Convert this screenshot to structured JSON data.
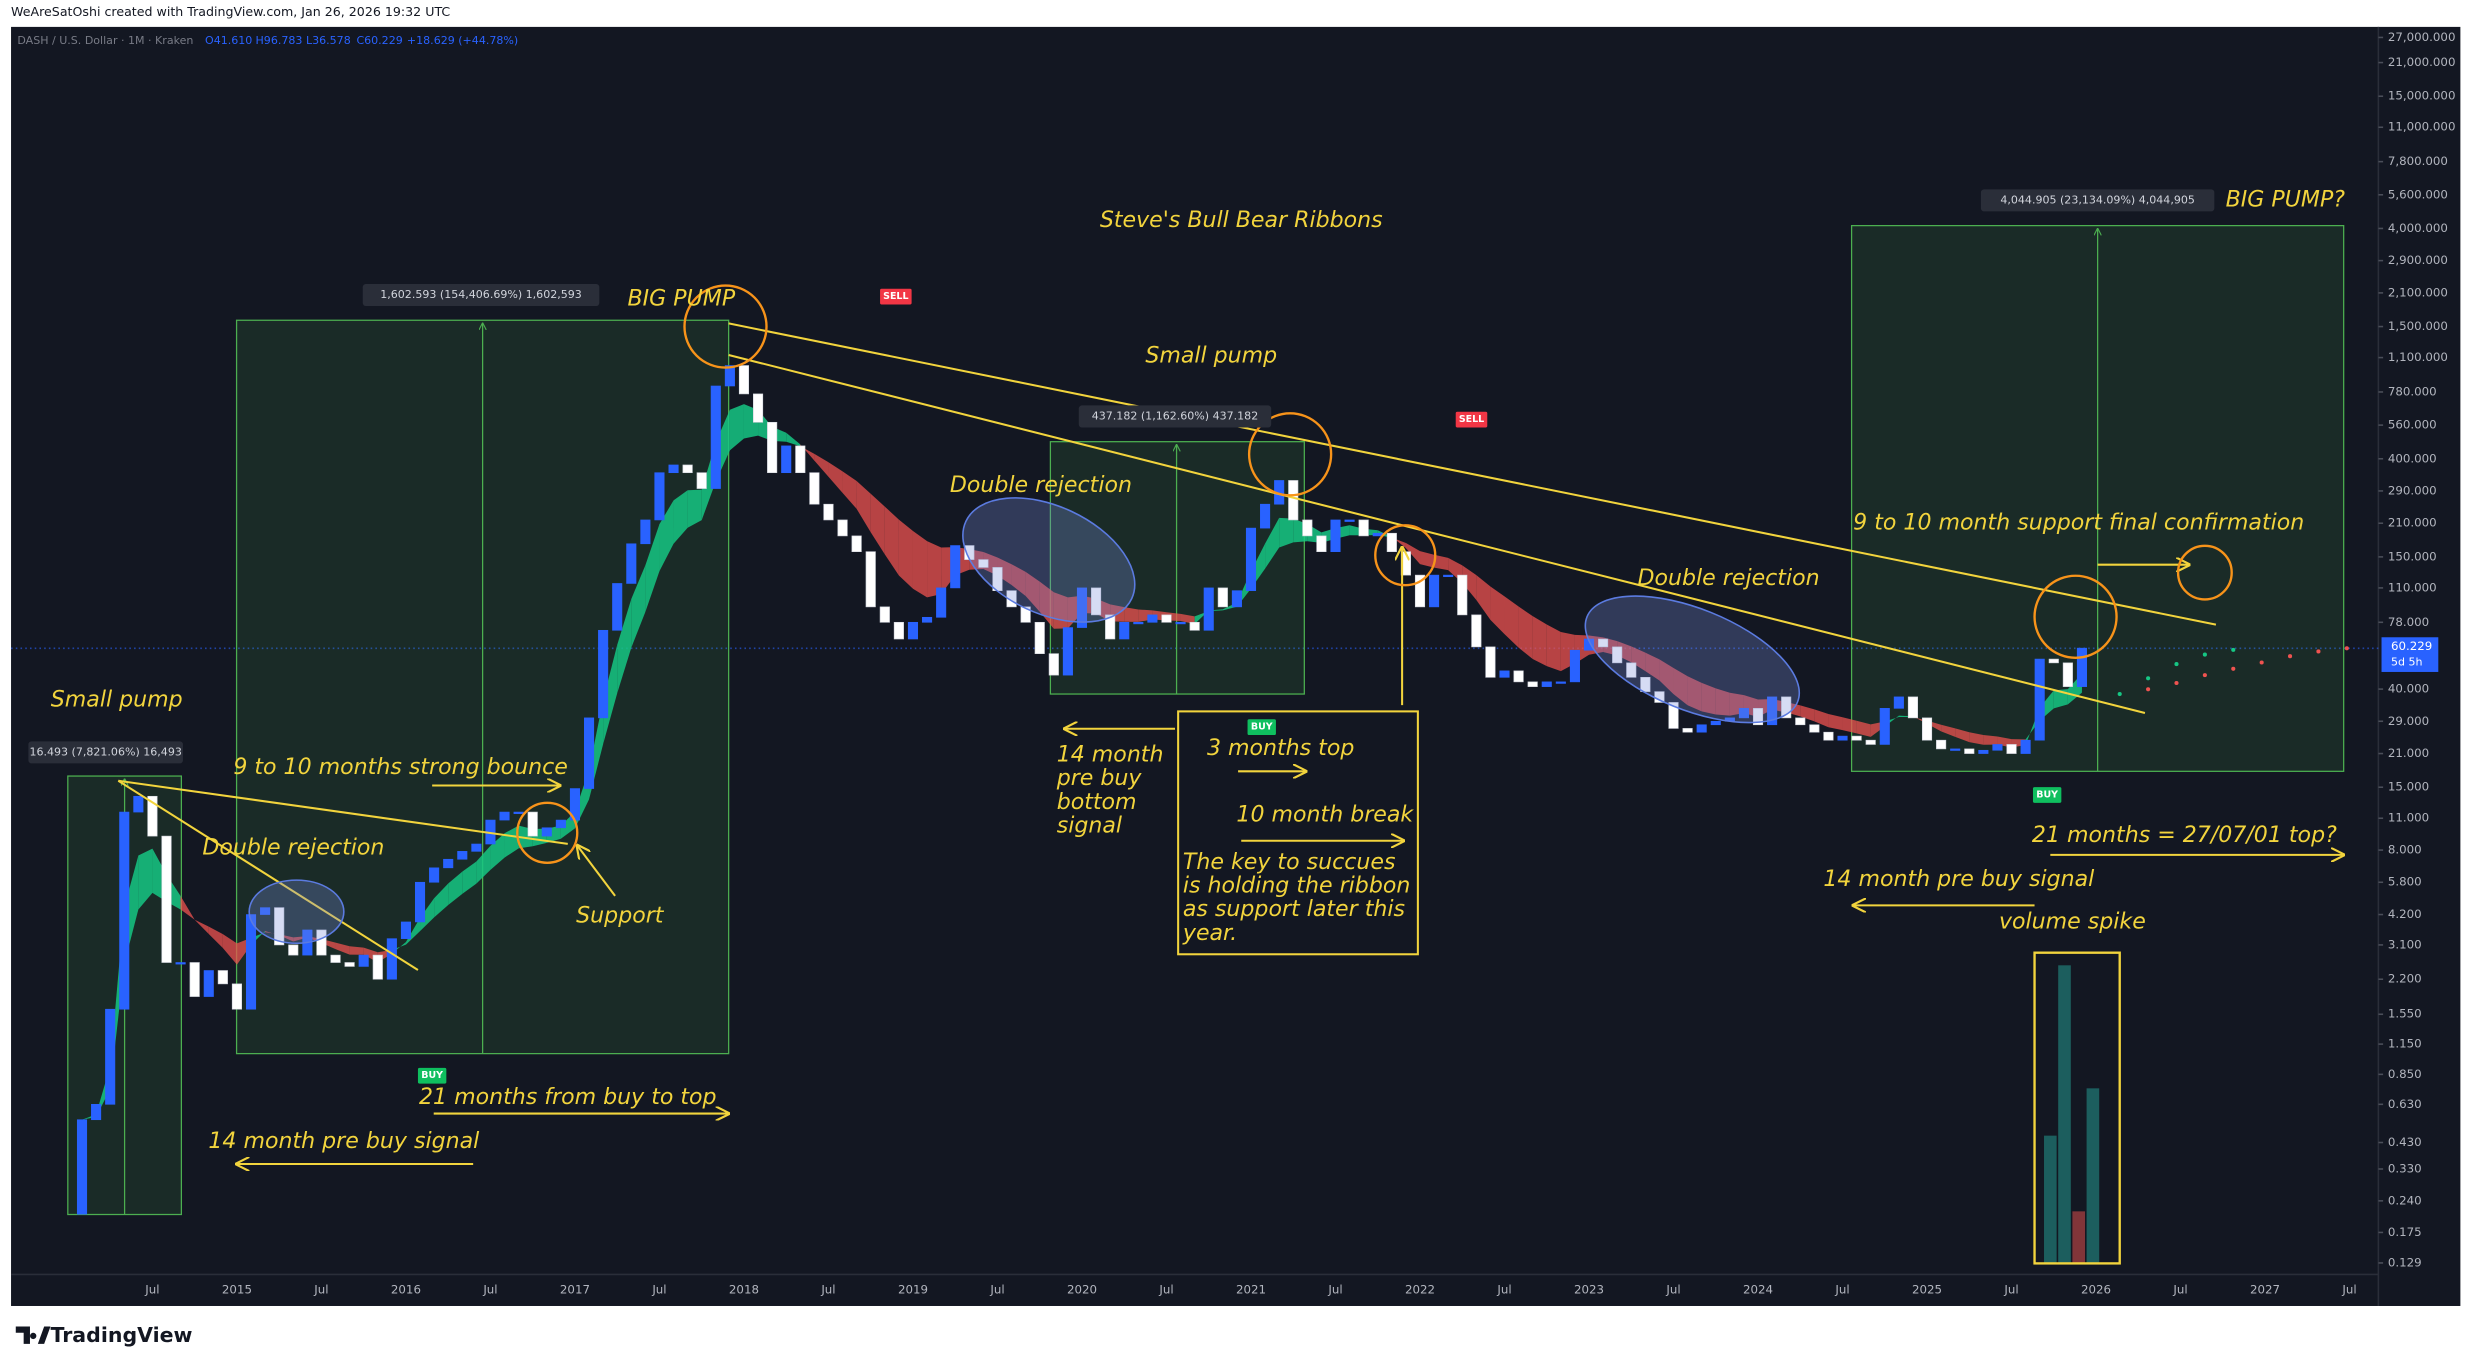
{
  "header": {
    "credit": "WeAreSatOshi created with TradingView.com, Jan 26, 2026 19:32 UTC",
    "symbol": "DASH / U.S. Dollar · 1M · Kraken",
    "open": "O41.610",
    "high": "H96.783",
    "low": "L36.578",
    "close": "C60.229",
    "change": "+18.629 (+44.78%)",
    "brand": "TradingView",
    "countdown": "5d 5h"
  },
  "chart_data": {
    "type": "candlestick",
    "title": "Steve's Bull Bear Ribbons",
    "log_scale": true,
    "up_color": "#2962ff",
    "down_color": "#ffffff",
    "ribbon": {
      "bull_color": "#16c784",
      "bear_color": "#ef5350"
    },
    "first_open": 0.21,
    "values": [
      0.54,
      0.63,
      1.63,
      11.7,
      13.7,
      9.2,
      2.6,
      2.6,
      1.85,
      2.4,
      2.1,
      1.63,
      4.2,
      4.5,
      3.1,
      2.8,
      3.6,
      2.8,
      2.6,
      2.5,
      2.8,
      2.2,
      3.3,
      3.9,
      5.8,
      6.7,
      7.3,
      7.9,
      8.5,
      10.8,
      11.7,
      11.7,
      9.2,
      10,
      10.8,
      14.8,
      30,
      72,
      115,
      171,
      217,
      348,
      376,
      348,
      297,
      828,
      1016,
      765,
      576,
      348,
      455,
      348,
      254,
      217,
      185,
      158,
      91,
      78,
      66,
      78,
      82,
      110,
      168,
      146,
      135,
      107,
      91,
      78,
      57,
      46,
      74,
      110,
      84,
      66,
      78,
      78,
      84,
      78,
      78,
      72,
      110,
      91,
      107,
      200,
      254,
      322,
      217,
      185,
      158,
      217,
      217,
      185,
      190,
      158,
      125,
      91,
      125,
      125,
      84,
      61,
      45,
      48,
      43,
      41,
      43,
      43,
      59,
      66,
      61,
      52,
      45,
      39,
      35,
      27,
      26,
      28,
      29,
      30,
      33,
      28,
      37,
      30,
      28,
      26,
      24,
      25,
      24,
      23,
      33,
      37,
      30,
      24,
      22,
      22,
      21,
      21.7,
      23,
      21,
      24,
      54,
      52,
      41,
      60.229
    ],
    "ylim": [
      0.115,
      30000
    ],
    "yticks": [
      {
        "value": 27000,
        "label": "27,000.000"
      },
      {
        "value": 21000,
        "label": "21,000.000"
      },
      {
        "value": 15000,
        "label": "15,000.000"
      },
      {
        "value": 11000,
        "label": "11,000.000"
      },
      {
        "value": 7800,
        "label": "7,800.000"
      },
      {
        "value": 5600,
        "label": "5,600.000"
      },
      {
        "value": 4000,
        "label": "4,000.000"
      },
      {
        "value": 2900,
        "label": "2,900.000"
      },
      {
        "value": 2100,
        "label": "2,100.000"
      },
      {
        "value": 1500,
        "label": "1,500.000"
      },
      {
        "value": 1100,
        "label": "1,100.000"
      },
      {
        "value": 780,
        "label": "780.000"
      },
      {
        "value": 560,
        "label": "560.000"
      },
      {
        "value": 400,
        "label": "400.000"
      },
      {
        "value": 290,
        "label": "290.000"
      },
      {
        "value": 210,
        "label": "210.000"
      },
      {
        "value": 150,
        "label": "150.000"
      },
      {
        "value": 110,
        "label": "110.000"
      },
      {
        "value": 78,
        "label": "78.000"
      },
      {
        "value": 40,
        "label": "40.000"
      },
      {
        "value": 29,
        "label": "29.000"
      },
      {
        "value": 21,
        "label": "21.000"
      },
      {
        "value": 15,
        "label": "15.000"
      },
      {
        "value": 11,
        "label": "11.000"
      },
      {
        "value": 8,
        "label": "8.000"
      },
      {
        "value": 5.8,
        "label": "5.800"
      },
      {
        "value": 4.2,
        "label": "4.200"
      },
      {
        "value": 3.1,
        "label": "3.100"
      },
      {
        "value": 2.2,
        "label": "2.200"
      },
      {
        "value": 1.55,
        "label": "1.550"
      },
      {
        "value": 1.15,
        "label": "1.150"
      },
      {
        "value": 0.85,
        "label": "0.850"
      },
      {
        "value": 0.63,
        "label": "0.630"
      },
      {
        "value": 0.43,
        "label": "0.430"
      },
      {
        "value": 0.33,
        "label": "0.330"
      },
      {
        "value": 0.24,
        "label": "0.240"
      },
      {
        "value": 0.175,
        "label": "0.175"
      },
      {
        "value": 0.129,
        "label": "0.129"
      }
    ],
    "xticks": [
      "Jul",
      "2015",
      "Jul",
      "2016",
      "Jul",
      "2017",
      "Jul",
      "2018",
      "Jul",
      "2019",
      "Jul",
      "2020",
      "Jul",
      "2021",
      "Jul",
      "2022",
      "Jul",
      "2023",
      "Jul",
      "2024",
      "Jul",
      "2025",
      "Jul",
      "2026",
      "Jul",
      "2027",
      "Jul"
    ]
  },
  "annotations": {
    "big_pump": "BIG PUMP",
    "big_pump_q": "BIG PUMP?",
    "small_pump_1": "Small pump",
    "small_pump_2": "Small pump",
    "double_rejection_1": "Double rejection",
    "double_rejection_2": "Double rejection",
    "double_rejection_3": "Double rejection",
    "support_confirmation": "9 to 10 month support final confirmation",
    "strong_bounce": "9 to 10 months strong bounce",
    "support": "Support",
    "buy_to_top": "21 months from buy to top",
    "pre_buy_1": "14 month pre buy signal",
    "pre_buy_2": "14 month pre buy signal",
    "pre_buy_bottom": [
      "14 month",
      "pre buy",
      "bottom",
      "signal"
    ],
    "three_months": "3 months top",
    "ten_month": "10 month break",
    "key_note": [
      "The key to succues",
      "is holding the ribbon",
      "as support later this",
      "year."
    ],
    "top_date": "21 months = 27/07/01 top?",
    "volume_spike": "volume spike",
    "measure_1": "16.493 (7,821.06%) 16,493",
    "measure_2": "1,602.593 (154,406.69%) 1,602,593",
    "measure_3": "437.182 (1,162.60%) 437.182",
    "measure_4": "4,044.905 (23,134.09%) 4,044,905",
    "buy": "BUY",
    "sell": "SELL"
  }
}
